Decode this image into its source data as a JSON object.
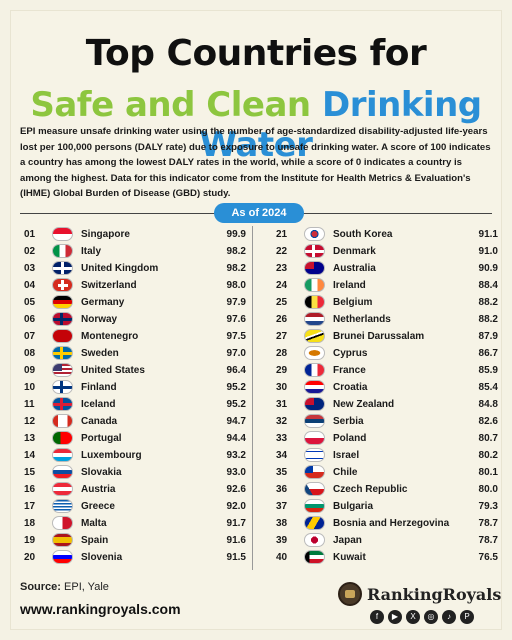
{
  "title_line1": "Top Countries for",
  "title_line2_a": "Safe and Clean",
  "title_line2_b": "Drinking Water",
  "description": "EPI measure unsafe drinking water using the number of age-standardized disability-adjusted life-years lost per 100,000 persons (DALY rate) due to exposure to unsafe drinking water. A score of 100 indicates a country has among the lowest DALY rates in the world, while a score of 0 indicates a country is among the highest. Data for this indicator come from the Institute for Health Metrics & Evaluation's (IHME) Global Burden of Disease (GBD) study.",
  "badge": "As of 2024",
  "colors": {
    "green": "#8dc63f",
    "blue": "#2a8fd6"
  },
  "left_rows": [
    {
      "rank": "01",
      "country": "Singapore",
      "score": "99.9",
      "flag": "sg"
    },
    {
      "rank": "02",
      "country": "Italy",
      "score": "98.2",
      "flag": "it"
    },
    {
      "rank": "03",
      "country": "United Kingdom",
      "score": "98.2",
      "flag": "uk"
    },
    {
      "rank": "04",
      "country": "Switzerland",
      "score": "98.0",
      "flag": "ch"
    },
    {
      "rank": "05",
      "country": "Germany",
      "score": "97.9",
      "flag": "de"
    },
    {
      "rank": "06",
      "country": "Norway",
      "score": "97.6",
      "flag": "no"
    },
    {
      "rank": "07",
      "country": "Montenegro",
      "score": "97.5",
      "flag": "me"
    },
    {
      "rank": "08",
      "country": "Sweden",
      "score": "97.0",
      "flag": "se"
    },
    {
      "rank": "09",
      "country": "United States",
      "score": "96.4",
      "flag": "us"
    },
    {
      "rank": "10",
      "country": "Finland",
      "score": "95.2",
      "flag": "fi"
    },
    {
      "rank": "11",
      "country": "Iceland",
      "score": "95.2",
      "flag": "is"
    },
    {
      "rank": "12",
      "country": "Canada",
      "score": "94.7",
      "flag": "ca"
    },
    {
      "rank": "13",
      "country": "Portugal",
      "score": "94.4",
      "flag": "pt"
    },
    {
      "rank": "14",
      "country": "Luxembourg",
      "score": "93.2",
      "flag": "lu"
    },
    {
      "rank": "15",
      "country": "Slovakia",
      "score": "93.0",
      "flag": "sk"
    },
    {
      "rank": "16",
      "country": "Austria",
      "score": "92.6",
      "flag": "at"
    },
    {
      "rank": "17",
      "country": "Greece",
      "score": "92.0",
      "flag": "gr"
    },
    {
      "rank": "18",
      "country": "Malta",
      "score": "91.7",
      "flag": "mt"
    },
    {
      "rank": "19",
      "country": "Spain",
      "score": "91.6",
      "flag": "es"
    },
    {
      "rank": "20",
      "country": "Slovenia",
      "score": "91.5",
      "flag": "si"
    }
  ],
  "right_rows": [
    {
      "rank": "21",
      "country": "South Korea",
      "score": "91.1",
      "flag": "kr"
    },
    {
      "rank": "22",
      "country": "Denmark",
      "score": "91.0",
      "flag": "dk"
    },
    {
      "rank": "23",
      "country": "Australia",
      "score": "90.9",
      "flag": "au"
    },
    {
      "rank": "24",
      "country": "Ireland",
      "score": "88.4",
      "flag": "ie"
    },
    {
      "rank": "25",
      "country": "Belgium",
      "score": "88.2",
      "flag": "be"
    },
    {
      "rank": "26",
      "country": "Netherlands",
      "score": "88.2",
      "flag": "nl"
    },
    {
      "rank": "27",
      "country": "Brunei Darussalam",
      "score": "87.9",
      "flag": "bn"
    },
    {
      "rank": "28",
      "country": "Cyprus",
      "score": "86.7",
      "flag": "cy"
    },
    {
      "rank": "29",
      "country": "France",
      "score": "85.9",
      "flag": "fr"
    },
    {
      "rank": "30",
      "country": "Croatia",
      "score": "85.4",
      "flag": "hr"
    },
    {
      "rank": "31",
      "country": "New Zealand",
      "score": "84.8",
      "flag": "nz"
    },
    {
      "rank": "32",
      "country": "Serbia",
      "score": "82.6",
      "flag": "rs"
    },
    {
      "rank": "33",
      "country": "Poland",
      "score": "80.7",
      "flag": "pl"
    },
    {
      "rank": "34",
      "country": "Israel",
      "score": "80.2",
      "flag": "il"
    },
    {
      "rank": "35",
      "country": "Chile",
      "score": "80.1",
      "flag": "cl"
    },
    {
      "rank": "36",
      "country": "Czech Republic",
      "score": "80.0",
      "flag": "cz"
    },
    {
      "rank": "37",
      "country": "Bulgaria",
      "score": "79.3",
      "flag": "bg"
    },
    {
      "rank": "38",
      "country": "Bosnia and Herzegovina",
      "score": "78.7",
      "flag": "ba"
    },
    {
      "rank": "39",
      "country": "Japan",
      "score": "78.7",
      "flag": "jp"
    },
    {
      "rank": "40",
      "country": "Kuwait",
      "score": "76.5",
      "flag": "kw"
    }
  ],
  "source_label": "Source:",
  "source_value": "EPI, Yale",
  "website": "www.rankingroyals.com",
  "brand_name": "RankingRoyals",
  "social_icons": [
    "facebook-icon",
    "youtube-icon",
    "x-icon",
    "instagram-icon",
    "tiktok-icon",
    "pinterest-icon"
  ]
}
